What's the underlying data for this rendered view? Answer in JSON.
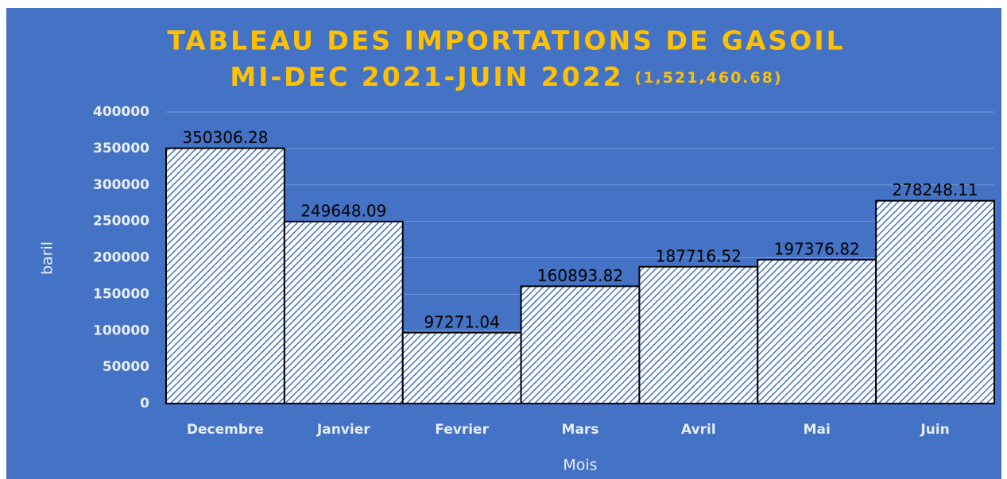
{
  "chart_data": {
    "type": "bar",
    "title": "TABLEAU DES IMPORTATIONS DE GASOIL",
    "subtitle": "MI-DEC 2021-JUIN 2022",
    "total_label": "(1,521,460.68)",
    "x_label": "Mois",
    "y_label": "baril",
    "categories": [
      "Decembre",
      "Janvier",
      "Fevrier",
      "Mars",
      "Avril",
      "Mai",
      "Juin"
    ],
    "values": [
      350306.28,
      249648.09,
      97271.04,
      160893.82,
      187716.52,
      197376.82,
      278248.11
    ],
    "color": "#4472c4",
    "background": "#4472c4",
    "ylim": [
      0,
      400000
    ],
    "yticks": [
      0,
      50000,
      100000,
      150000,
      200000,
      250000,
      300000,
      350000,
      400000
    ],
    "grid": true
  }
}
